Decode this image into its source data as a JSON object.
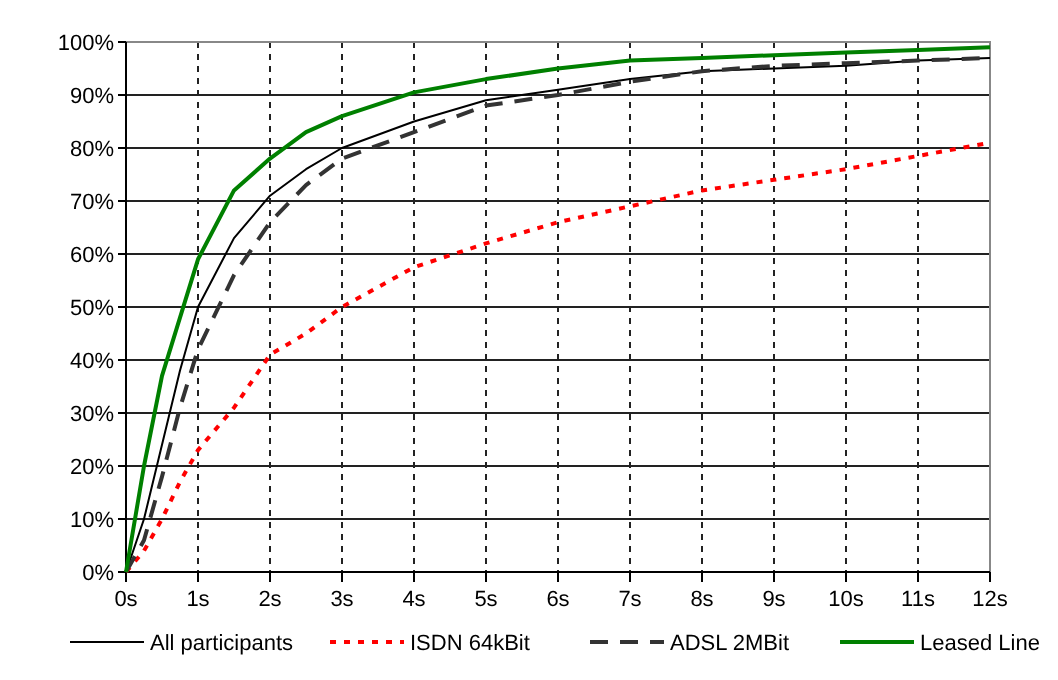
{
  "chart_data": {
    "type": "line",
    "x": [
      0,
      0.25,
      0.5,
      0.75,
      1,
      1.5,
      2,
      2.5,
      3,
      4,
      5,
      6,
      7,
      8,
      9,
      10,
      11,
      12
    ],
    "series": [
      {
        "name": "All participants",
        "color": "#000000",
        "line_style": "solid",
        "values": [
          0,
          10,
          24,
          38,
          50,
          63,
          71,
          76,
          80,
          85,
          89,
          91,
          93,
          94.5,
          95,
          95.5,
          96.5,
          97
        ]
      },
      {
        "name": "ISDN 64kBit",
        "color": "#ff0000",
        "line_style": "dotted",
        "values": [
          0,
          4,
          10,
          17,
          23,
          31,
          41,
          45,
          50,
          57.5,
          62,
          66,
          69,
          72,
          74,
          76,
          78.5,
          81
        ]
      },
      {
        "name": "ADSL 2MBit",
        "color": "#333333",
        "line_style": "dashed",
        "values": [
          0,
          6,
          18,
          31,
          42,
          56,
          66,
          73,
          78,
          83,
          88,
          90,
          92.5,
          94.5,
          95.5,
          96,
          96.5,
          97
        ]
      },
      {
        "name": "Leased Line",
        "color": "#008000",
        "line_style": "solid",
        "values": [
          0,
          20,
          37,
          48,
          59,
          72,
          78,
          83,
          86,
          90.5,
          93,
          95,
          96.5,
          97,
          97.5,
          98,
          98.5,
          99
        ]
      }
    ],
    "xlim": [
      0,
      12
    ],
    "xticks": [
      {
        "value": 0,
        "label": "0s"
      },
      {
        "value": 1,
        "label": "1s"
      },
      {
        "value": 2,
        "label": "2s"
      },
      {
        "value": 3,
        "label": "3s"
      },
      {
        "value": 4,
        "label": "4s"
      },
      {
        "value": 5,
        "label": "5s"
      },
      {
        "value": 6,
        "label": "6s"
      },
      {
        "value": 7,
        "label": "7s"
      },
      {
        "value": 8,
        "label": "8s"
      },
      {
        "value": 9,
        "label": "9s"
      },
      {
        "value": 10,
        "label": "10s"
      },
      {
        "value": 11,
        "label": "11s"
      },
      {
        "value": 12,
        "label": "12s"
      }
    ],
    "ylim": [
      0,
      100
    ],
    "yticks": [
      {
        "value": 0,
        "label": "0%"
      },
      {
        "value": 10,
        "label": "10%"
      },
      {
        "value": 20,
        "label": "20%"
      },
      {
        "value": 30,
        "label": "30%"
      },
      {
        "value": 40,
        "label": "40%"
      },
      {
        "value": 50,
        "label": "50%"
      },
      {
        "value": 60,
        "label": "60%"
      },
      {
        "value": 70,
        "label": "70%"
      },
      {
        "value": 80,
        "label": "80%"
      },
      {
        "value": 90,
        "label": "90%"
      },
      {
        "value": 100,
        "label": "100%"
      }
    ],
    "grid": true,
    "legend": "bottom",
    "marker": "none"
  }
}
